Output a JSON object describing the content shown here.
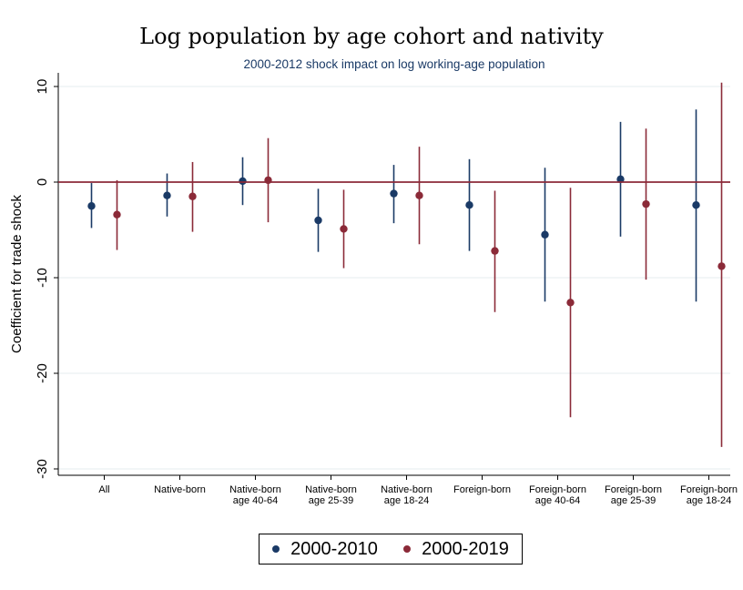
{
  "title": "Log population by age cohort and nativity",
  "chart_data": {
    "type": "scatter",
    "subtitle": "2000-2012 shock impact on log working-age population",
    "ylabel": "Coefficient for trade shock",
    "xlabel": "",
    "ylim": [
      -31,
      10.5
    ],
    "yticks": [
      10,
      0,
      -10,
      -20,
      -30
    ],
    "ytick_labels": [
      "10",
      "0",
      "-10",
      "-20",
      "-30"
    ],
    "reference_line": 0,
    "grid": true,
    "legend_position": "bottom",
    "categories": [
      [
        "All"
      ],
      [
        "Native-born"
      ],
      [
        "Native-born",
        "age 40-64"
      ],
      [
        "Native-born",
        "age 25-39"
      ],
      [
        "Native-born",
        "age 18-24"
      ],
      [
        "Foreign-born"
      ],
      [
        "Foreign-born",
        "age 40-64"
      ],
      [
        "Foreign-born",
        "age 25-39"
      ],
      [
        "Foreign-born",
        "age 18-24"
      ]
    ],
    "series": [
      {
        "name": "2000-2010",
        "color": "#1a3a66",
        "values": [
          -2.5,
          -1.4,
          0.1,
          -4.0,
          -1.2,
          -2.4,
          -5.5,
          0.3,
          -2.4
        ],
        "ci_low": [
          -4.8,
          -3.6,
          -2.4,
          -7.3,
          -4.3,
          -7.2,
          -12.5,
          -5.7,
          -12.5
        ],
        "ci_high": [
          -0.1,
          0.9,
          2.6,
          -0.7,
          1.8,
          2.4,
          1.5,
          6.3,
          7.6
        ]
      },
      {
        "name": "2000-2019",
        "color": "#8b2a38",
        "values": [
          -3.4,
          -1.5,
          0.2,
          -4.9,
          -1.4,
          -7.2,
          -12.6,
          -2.3,
          -8.8
        ],
        "ci_low": [
          -7.1,
          -5.2,
          -4.2,
          -9.0,
          -6.5,
          -13.6,
          -24.6,
          -10.2,
          -27.7
        ],
        "ci_high": [
          0.2,
          2.1,
          4.6,
          -0.8,
          3.7,
          -0.9,
          -0.6,
          5.6,
          10.4
        ]
      }
    ]
  }
}
